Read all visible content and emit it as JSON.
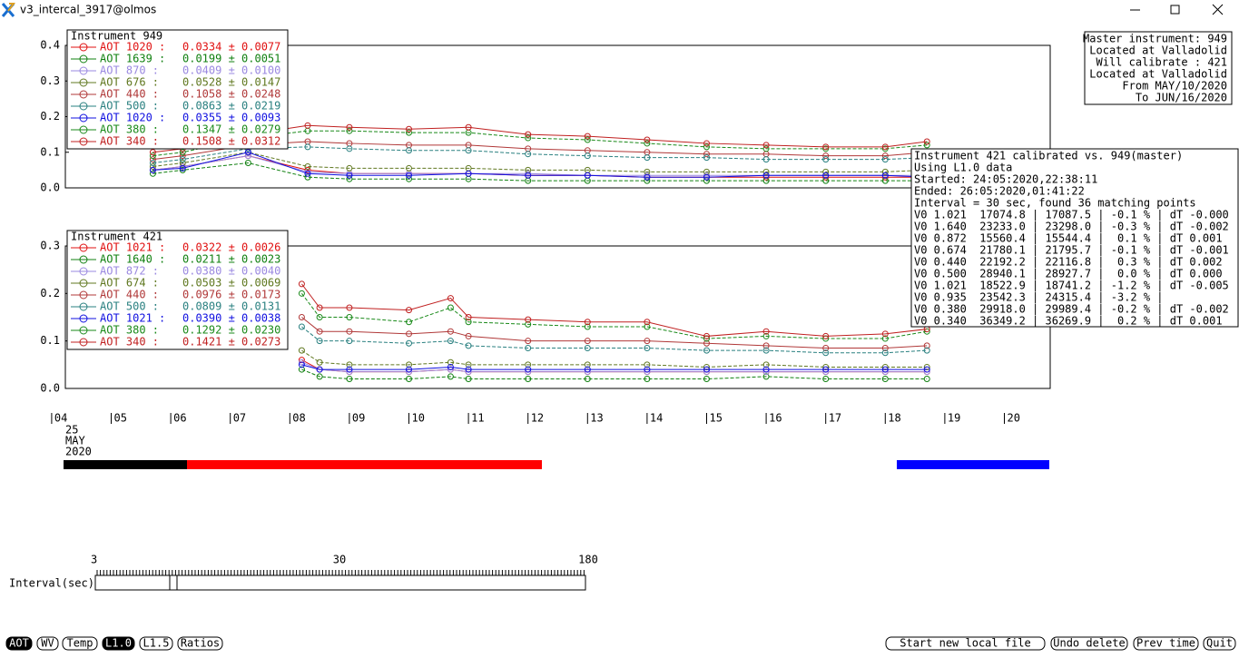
{
  "window": {
    "title": "v3_intercal_3917@olmos"
  },
  "chart_data": [
    {
      "type": "line",
      "legend_title": "Instrument 949",
      "x": [
        5.7,
        6.2,
        7.3,
        8.3,
        9,
        10,
        11,
        12,
        13,
        14,
        15,
        16,
        17,
        18,
        18.7
      ],
      "xlim": [
        4.23,
        20.77
      ],
      "ylim": [
        0,
        0.4
      ],
      "yticks": [
        {
          "value": 0,
          "label": "0.0"
        },
        {
          "value": 0.1,
          "label": "0.1"
        },
        {
          "value": 0.2,
          "label": "0.2"
        },
        {
          "value": 0.3,
          "label": "0.3"
        },
        {
          "value": 0.4,
          "label": "0.4"
        }
      ],
      "series": [
        {
          "name": "AOT 1020 :",
          "stat": "0.0334 ± 0.0077",
          "color": "#e01010",
          "values": [
            0.05,
            0.06,
            0.09,
            0.05,
            0.04,
            0.04,
            0.04,
            0.035,
            0.035,
            0.03,
            0.03,
            0.03,
            0.03,
            0.03,
            0.03
          ]
        },
        {
          "name": "AOT 1639 :",
          "stat": "0.0199 ± 0.0051",
          "color": "#108010",
          "values": [
            0.04,
            0.05,
            0.07,
            0.03,
            0.025,
            0.025,
            0.025,
            0.02,
            0.02,
            0.02,
            0.02,
            0.02,
            0.02,
            0.02,
            0.02
          ]
        },
        {
          "name": "AOT 870 :",
          "stat": "0.0409 ± 0.0100",
          "color": "#9a88e0",
          "values": [
            0.05,
            0.06,
            0.09,
            0.045,
            0.04,
            0.04,
            0.04,
            0.04,
            0.035,
            0.035,
            0.035,
            0.035,
            0.035,
            0.035,
            0.035
          ]
        },
        {
          "name": "AOT 676 :",
          "stat": "0.0528 ± 0.0147",
          "color": "#607820",
          "values": [
            0.06,
            0.07,
            0.1,
            0.06,
            0.055,
            0.055,
            0.055,
            0.05,
            0.05,
            0.045,
            0.045,
            0.045,
            0.045,
            0.045,
            0.05
          ]
        },
        {
          "name": "AOT 440 :",
          "stat": "0.1058 ± 0.0248",
          "color": "#b03838",
          "values": [
            0.08,
            0.09,
            0.12,
            0.13,
            0.125,
            0.12,
            0.12,
            0.11,
            0.105,
            0.1,
            0.095,
            0.095,
            0.09,
            0.09,
            0.1
          ]
        },
        {
          "name": "AOT 500 :",
          "stat": "0.0863 ± 0.0219",
          "color": "#2a8080",
          "values": [
            0.07,
            0.08,
            0.11,
            0.115,
            0.11,
            0.105,
            0.105,
            0.095,
            0.09,
            0.085,
            0.085,
            0.08,
            0.08,
            0.08,
            0.085
          ]
        },
        {
          "name": "AOT 1020 :",
          "stat": "0.0355 ± 0.0093",
          "color": "#1010e0",
          "values": [
            0.05,
            0.055,
            0.1,
            0.04,
            0.035,
            0.035,
            0.04,
            0.035,
            0.035,
            0.03,
            0.03,
            0.035,
            0.035,
            0.035,
            0.03
          ]
        },
        {
          "name": "AOT 380 :",
          "stat": "0.1347 ± 0.0279",
          "color": "#1a8a1a",
          "values": [
            0.09,
            0.1,
            0.14,
            0.16,
            0.16,
            0.155,
            0.155,
            0.14,
            0.135,
            0.125,
            0.115,
            0.11,
            0.11,
            0.11,
            0.12
          ]
        },
        {
          "name": "AOT 340 :",
          "stat": "0.1508 ± 0.0312",
          "color": "#c02020",
          "values": [
            0.1,
            0.11,
            0.15,
            0.175,
            0.17,
            0.165,
            0.17,
            0.15,
            0.145,
            0.135,
            0.125,
            0.12,
            0.115,
            0.115,
            0.13
          ]
        }
      ]
    },
    {
      "type": "line",
      "legend_title": "Instrument 421",
      "x": [
        8.2,
        8.5,
        9,
        10,
        10.7,
        11,
        12,
        13,
        14,
        15,
        16,
        17,
        18,
        18.7
      ],
      "xlim": [
        4.23,
        20.77
      ],
      "ylim": [
        0,
        0.3
      ],
      "yticks": [
        {
          "value": 0,
          "label": "0.0"
        },
        {
          "value": 0.1,
          "label": "0.1"
        },
        {
          "value": 0.2,
          "label": "0.2"
        },
        {
          "value": 0.3,
          "label": "0.3"
        }
      ],
      "xticks": [
        {
          "value": 4,
          "label": "04"
        },
        {
          "value": 5,
          "label": "05"
        },
        {
          "value": 6,
          "label": "06"
        },
        {
          "value": 7,
          "label": "07"
        },
        {
          "value": 8,
          "label": "08"
        },
        {
          "value": 9,
          "label": "09"
        },
        10,
        11,
        12,
        13,
        14,
        15,
        16,
        17,
        18,
        19,
        20
      ],
      "series": [
        {
          "name": "AOT 1021 :",
          "stat": "0.0322 ± 0.0026",
          "color": "#e01010",
          "values": [
            0.06,
            0.04,
            0.035,
            0.035,
            0.04,
            0.035,
            0.035,
            0.035,
            0.035,
            0.035,
            0.035,
            0.035,
            0.035,
            0.035
          ]
        },
        {
          "name": "AOT 1640 :",
          "stat": "0.0211 ± 0.0023",
          "color": "#108010",
          "values": [
            0.04,
            0.025,
            0.02,
            0.02,
            0.025,
            0.02,
            0.02,
            0.02,
            0.02,
            0.02,
            0.025,
            0.02,
            0.02,
            0.02
          ]
        },
        {
          "name": "AOT 872 :",
          "stat": "0.0380 ± 0.0040",
          "color": "#9a88e0",
          "values": [
            0.055,
            0.04,
            0.035,
            0.035,
            0.04,
            0.035,
            0.035,
            0.035,
            0.035,
            0.035,
            0.035,
            0.035,
            0.035,
            0.035
          ]
        },
        {
          "name": "AOT 674 :",
          "stat": "0.0503 ± 0.0069",
          "color": "#607820",
          "values": [
            0.08,
            0.055,
            0.05,
            0.05,
            0.055,
            0.05,
            0.05,
            0.05,
            0.05,
            0.045,
            0.05,
            0.045,
            0.045,
            0.045
          ]
        },
        {
          "name": "AOT 440 :",
          "stat": "0.0976 ± 0.0173",
          "color": "#b03838",
          "values": [
            0.15,
            0.12,
            0.12,
            0.115,
            0.12,
            0.11,
            0.1,
            0.1,
            0.1,
            0.095,
            0.09,
            0.085,
            0.085,
            0.09
          ]
        },
        {
          "name": "AOT 500 :",
          "stat": "0.0809 ± 0.0131",
          "color": "#2a8080",
          "values": [
            0.13,
            0.1,
            0.1,
            0.095,
            0.1,
            0.09,
            0.085,
            0.085,
            0.085,
            0.08,
            0.08,
            0.075,
            0.075,
            0.08
          ]
        },
        {
          "name": "AOT 1021 :",
          "stat": "0.0390 ± 0.0038",
          "color": "#1010e0",
          "values": [
            0.05,
            0.04,
            0.04,
            0.04,
            0.045,
            0.04,
            0.04,
            0.04,
            0.04,
            0.04,
            0.04,
            0.04,
            0.04,
            0.04
          ]
        },
        {
          "name": "AOT 380 :",
          "stat": "0.1292 ± 0.0230",
          "color": "#1a8a1a",
          "values": [
            0.2,
            0.15,
            0.15,
            0.14,
            0.17,
            0.14,
            0.135,
            0.13,
            0.13,
            0.105,
            0.11,
            0.105,
            0.105,
            0.12
          ]
        },
        {
          "name": "AOT 340 :",
          "stat": "0.1421 ± 0.0273",
          "color": "#c02020",
          "values": [
            0.22,
            0.17,
            0.17,
            0.165,
            0.19,
            0.15,
            0.145,
            0.14,
            0.14,
            0.11,
            0.12,
            0.11,
            0.115,
            0.125
          ]
        }
      ]
    }
  ],
  "date_label": [
    "25",
    "MAY",
    "2020"
  ],
  "master_box": [
    "Master instrument: 949",
    "Located at Valladolid",
    "Will calibrate   : 421",
    "Located at Valladolid",
    "From MAY/10/2020",
    "To JUN/16/2020"
  ],
  "info_box": [
    "Instrument 421 calibrated vs. 949(master)",
    "Using L1.0 data",
    "Started: 24:05:2020,22:38:11",
    "Ended: 26:05:2020,01:41:22",
    "Interval = 30 sec, found 36 matching points",
    "V0 1.021  17074.8 | 17087.5 | -0.1 % | dT -0.000",
    "V0 1.640  23233.0 | 23298.0 | -0.3 % | dT -0.002",
    "V0 0.872  15560.4 | 15544.4 |  0.1 % | dT 0.001",
    "V0 0.674  21780.1 | 21795.7 | -0.1 % | dT -0.001",
    "V0 0.440  22192.2 | 22116.8 |  0.3 % | dT 0.002",
    "V0 0.500  28940.1 | 28927.7 |  0.0 % | dT 0.000",
    "V0 1.021  18522.9 | 18741.2 | -1.2 % | dT -0.005",
    "V0 0.935  23542.3 | 24315.4 | -3.2 % |",
    "V0 0.380  29918.0 | 29989.4 | -0.2 % | dT -0.002",
    "V0 0.340  36349.2 | 36269.9 |  0.2 % | dT 0.001"
  ],
  "slider": {
    "label": "Interval(sec)",
    "ticks": [
      "3",
      "30",
      "180"
    ]
  },
  "buttons_left": [
    "AOT",
    "WV",
    "Temp",
    "L1.0",
    "L1.5",
    "Ratios"
  ],
  "buttons_right": [
    "Start new local file",
    "Undo delete",
    "Prev time",
    "Quit"
  ]
}
